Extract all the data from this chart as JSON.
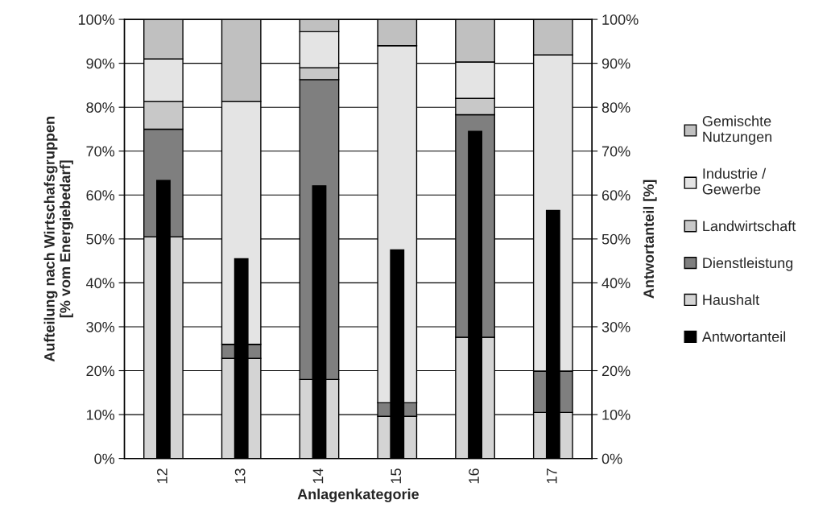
{
  "chart_data": {
    "type": "bar",
    "stacked": true,
    "xlabel": "Anlagenkategorie",
    "ylabel": "Aufteilung nach Wirtschafsgruppen\n[% vom Energiebedarf]",
    "y2label": "Antwortanteil [%]",
    "categories": [
      "12",
      "13",
      "14",
      "15",
      "16",
      "17"
    ],
    "series": [
      {
        "name": "Haushalt",
        "color": "#d4d4d4",
        "values": [
          50.5,
          22.8,
          18.0,
          9.6,
          27.6,
          10.5
        ]
      },
      {
        "name": "Dienstleistung",
        "color": "#7f7f7f",
        "values": [
          24.5,
          3.2,
          68.3,
          3.1,
          50.7,
          9.4
        ]
      },
      {
        "name": "Landwirtschaft",
        "color": "#c8c8c8",
        "values": [
          6.3,
          0,
          2.7,
          0,
          3.7,
          0
        ]
      },
      {
        "name": "Industrie /\nGewerbe",
        "color": "#e4e4e4",
        "values": [
          9.7,
          55.3,
          8.2,
          81.3,
          8.3,
          72.0
        ]
      },
      {
        "name": "Gemischte\nNutzungen",
        "color": "#c0c0c0",
        "values": [
          9.0,
          18.7,
          2.8,
          6.0,
          9.7,
          8.1
        ]
      },
      {
        "name": "Antwortanteil",
        "color": "#000000",
        "axis": "y2",
        "values": [
          63.3,
          45.5,
          62.1,
          47.5,
          74.5,
          56.5
        ]
      }
    ],
    "ylim": [
      0,
      100
    ],
    "yticks": [
      {
        "value": 0,
        "label": "0%"
      },
      {
        "value": 10,
        "label": "10%"
      },
      {
        "value": 20,
        "label": "20%"
      },
      {
        "value": 30,
        "label": "30%"
      },
      {
        "value": 40,
        "label": "40%"
      },
      {
        "value": 50,
        "label": "50%"
      },
      {
        "value": 60,
        "label": "60%"
      },
      {
        "value": 70,
        "label": "70%"
      },
      {
        "value": 80,
        "label": "80%"
      },
      {
        "value": 90,
        "label": "90%"
      },
      {
        "value": 100,
        "label": "100%"
      }
    ],
    "y2lim": [
      0,
      100
    ],
    "y2ticks": [
      {
        "value": 0,
        "label": "0%"
      },
      {
        "value": 10,
        "label": "10%"
      },
      {
        "value": 20,
        "label": "20%"
      },
      {
        "value": 30,
        "label": "30%"
      },
      {
        "value": 40,
        "label": "40%"
      },
      {
        "value": 50,
        "label": "50%"
      },
      {
        "value": 60,
        "label": "60%"
      },
      {
        "value": 70,
        "label": "70%"
      },
      {
        "value": 80,
        "label": "80%"
      },
      {
        "value": 90,
        "label": "90%"
      },
      {
        "value": 100,
        "label": "100%"
      }
    ],
    "grid": "y",
    "legend": "right"
  }
}
